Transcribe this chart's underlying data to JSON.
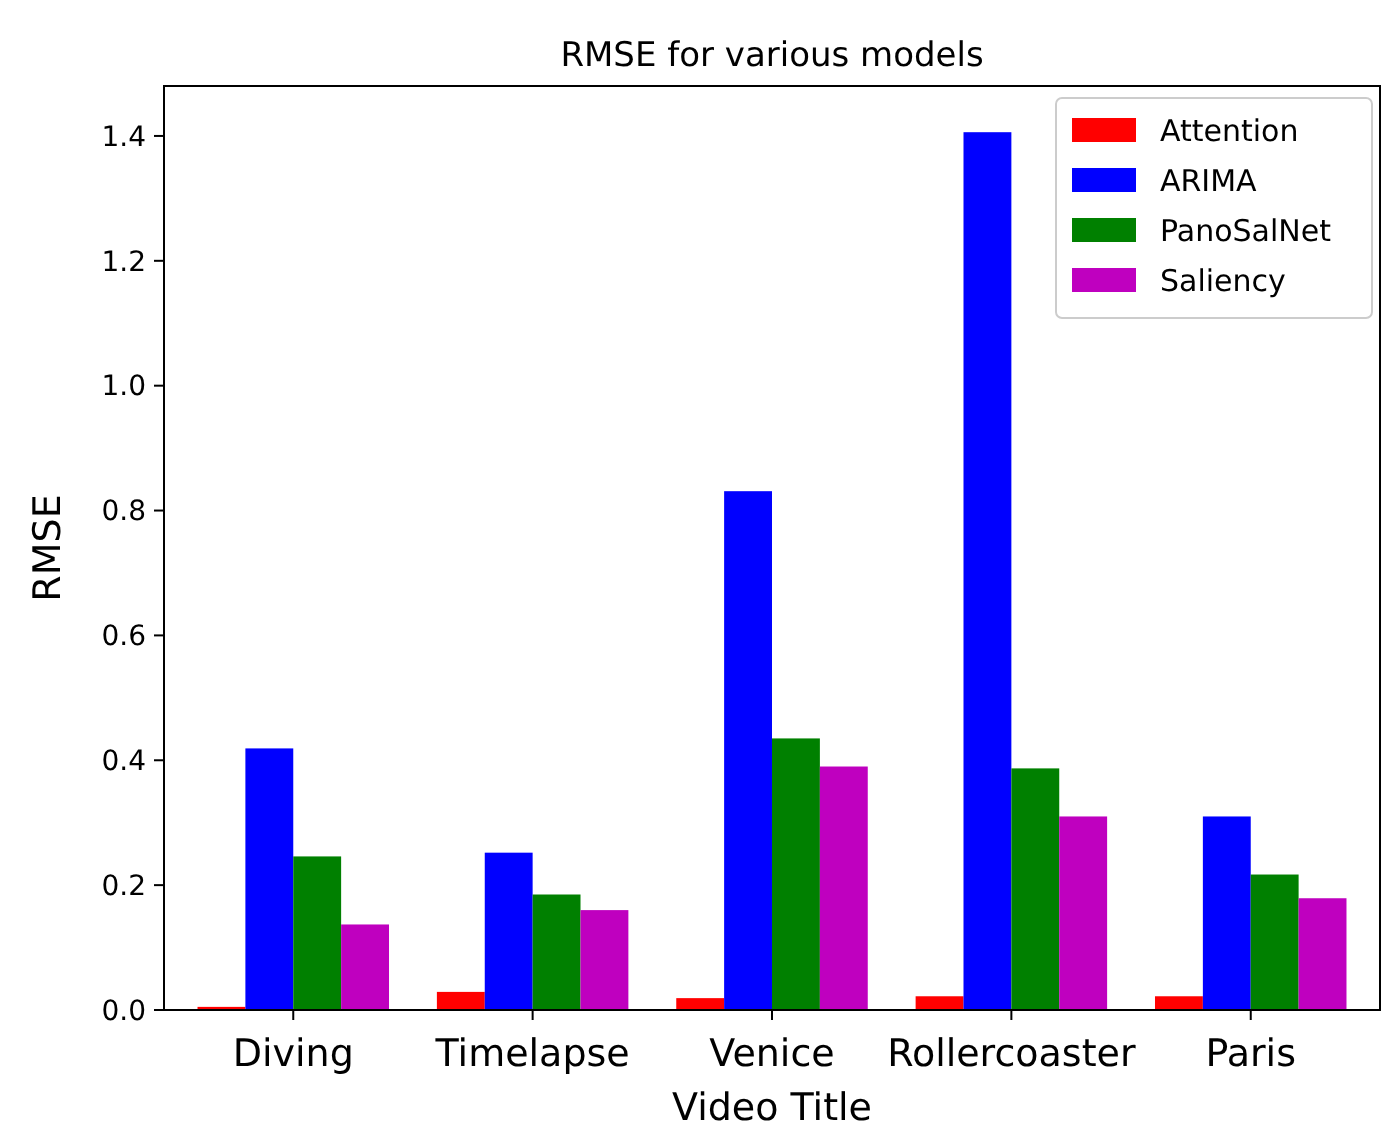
{
  "chart_data": {
    "type": "bar",
    "title": "RMSE for various models",
    "xlabel": "Video Title",
    "ylabel": "RMSE",
    "categories": [
      "Diving",
      "Timelapse",
      "Venice",
      "Rollercoaster",
      "Paris"
    ],
    "series": [
      {
        "name": "Attention",
        "color": "#ff0000",
        "values": [
          0.005,
          0.029,
          0.019,
          0.022,
          0.022
        ]
      },
      {
        "name": "ARIMA",
        "color": "#0000ff",
        "values": [
          0.419,
          0.252,
          0.831,
          1.406,
          0.31
        ]
      },
      {
        "name": "PanoSalNet",
        "color": "#008000",
        "values": [
          0.246,
          0.185,
          0.435,
          0.387,
          0.217
        ]
      },
      {
        "name": "Saliency",
        "color": "#bf00bf",
        "values": [
          0.137,
          0.16,
          0.39,
          0.31,
          0.179
        ]
      }
    ],
    "ylim": [
      0,
      1.48
    ],
    "yticks": [
      {
        "value": 0,
        "label": "0.0"
      },
      {
        "value": 0.2,
        "label": "0.2"
      },
      {
        "value": 0.4,
        "label": "0.4"
      },
      {
        "value": 0.6,
        "label": "0.6"
      },
      {
        "value": 0.8,
        "label": "0.8"
      },
      {
        "value": 1.0,
        "label": "1.0"
      },
      {
        "value": 1.2,
        "label": "1.2"
      },
      {
        "value": 1.4,
        "label": "1.4"
      }
    ],
    "grid": false,
    "legend": "top right"
  }
}
